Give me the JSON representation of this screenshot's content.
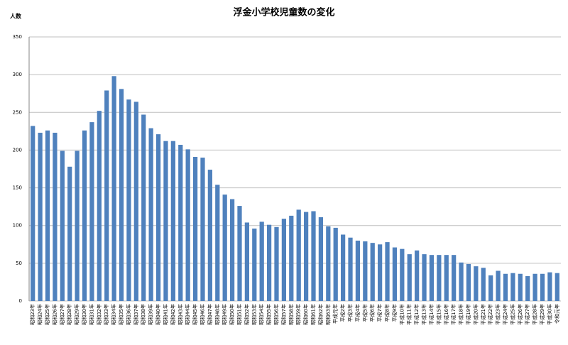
{
  "chart_data": {
    "type": "bar",
    "title": "浮金小学校児童数の変化",
    "y_label": "人数",
    "categories": [
      "昭和23年",
      "昭和24年",
      "昭和25年",
      "昭和26年",
      "昭和27年",
      "昭和28年",
      "昭和29年",
      "昭和30年",
      "昭和31年",
      "昭和32年",
      "昭和33年",
      "昭和34年",
      "昭和35年",
      "昭和36年",
      "昭和37年",
      "昭和38年",
      "昭和39年",
      "昭和40年",
      "昭和41年",
      "昭和42年",
      "昭和43年",
      "昭和44年",
      "昭和45年",
      "昭和46年",
      "昭和47年",
      "昭和48年",
      "昭和49年",
      "昭和50年",
      "昭和51年",
      "昭和52年",
      "昭和53年",
      "昭和54年",
      "昭和55年",
      "昭和56年",
      "昭和57年",
      "昭和58年",
      "昭和59年",
      "昭和60年",
      "昭和61年",
      "昭和62年",
      "昭和63年",
      "平成元年",
      "平成2年",
      "平成3年",
      "平成4年",
      "平成5年",
      "平成6年",
      "平成7年",
      "平成8年",
      "平成9年",
      "平成10年",
      "平成11年",
      "平成12年",
      "平成13年",
      "平成14年",
      "平成15年",
      "平成16年",
      "平成17年",
      "平成18年",
      "平成19年",
      "平成20年",
      "平成21年",
      "平成22年",
      "平成23年",
      "平成24年",
      "平成25年",
      "平成26年",
      "平成27年",
      "平成28年",
      "平成29年",
      "平成30年",
      "令和元年"
    ],
    "values": [
      232,
      223,
      226,
      223,
      199,
      178,
      199,
      226,
      237,
      252,
      279,
      298,
      281,
      267,
      264,
      247,
      229,
      221,
      212,
      212,
      207,
      201,
      191,
      190,
      174,
      154,
      141,
      135,
      126,
      104,
      96,
      105,
      101,
      98,
      109,
      113,
      121,
      118,
      119,
      111,
      99,
      97,
      88,
      84,
      80,
      79,
      77,
      75,
      78,
      71,
      69,
      62,
      67,
      62,
      61,
      61,
      61,
      61,
      51,
      49,
      46,
      44,
      34,
      40,
      36,
      37,
      36,
      33,
      36,
      36,
      38,
      37
    ],
    "color": "#4f81bd",
    "ylim": [
      0,
      350
    ],
    "yticks": [
      0,
      50,
      100,
      150,
      200,
      250,
      300,
      350
    ],
    "grid": true
  }
}
